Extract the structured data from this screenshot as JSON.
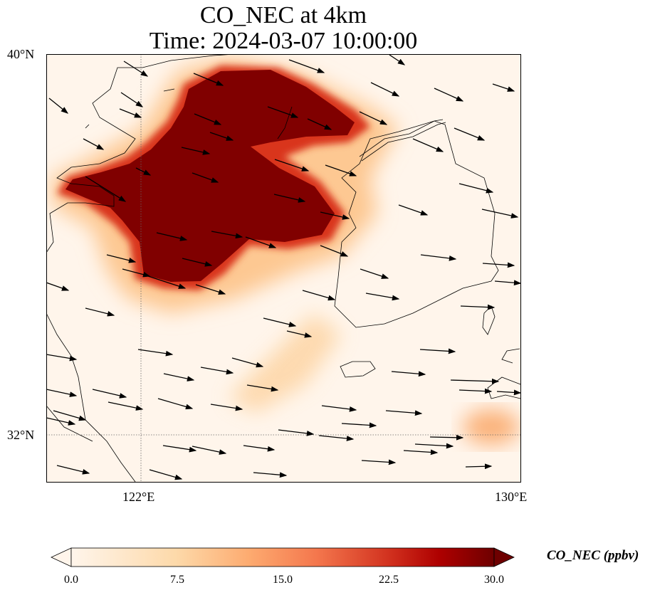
{
  "title": {
    "line1": "CO_NEC at 4km",
    "line2": "Time: 2024-03-07 10:00:00"
  },
  "axes": {
    "lat_labels": [
      "40°N",
      "32°N"
    ],
    "lon_labels": [
      "122°E",
      "130°E"
    ],
    "extent": {
      "lon": [
        120,
        130
      ],
      "lat": [
        31,
        40
      ]
    }
  },
  "colorbar": {
    "label": "CO_NEC (ppbv)",
    "ticks": [
      "0.0",
      "7.5",
      "15.0",
      "22.5",
      "30.0"
    ],
    "range": [
      0,
      30
    ],
    "extend": "both",
    "colors": [
      "#fff5eb",
      "#fdd9a9",
      "#fdab70",
      "#f4774d",
      "#d2321f",
      "#ae0000",
      "#6e0000"
    ]
  },
  "colors": {
    "background": "#fff5eb",
    "max": "#800000"
  }
}
